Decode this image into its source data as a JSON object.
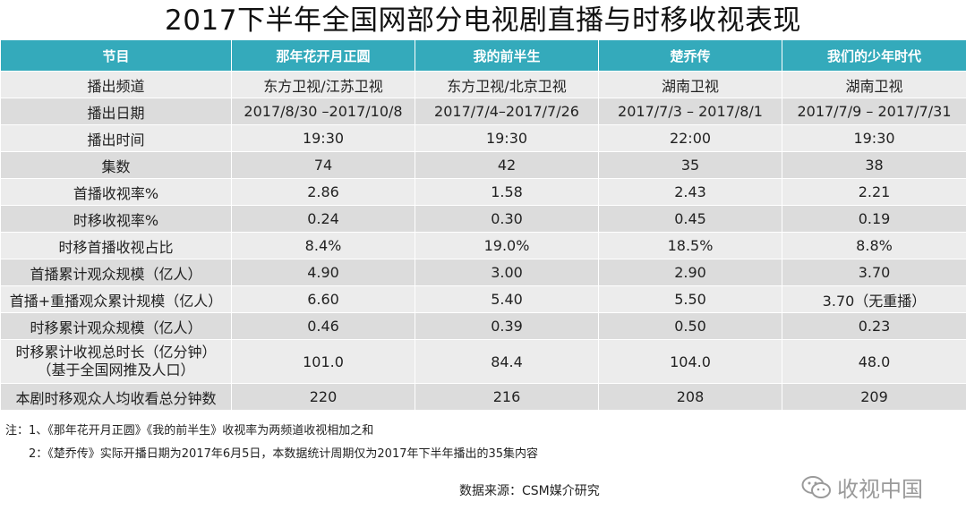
{
  "title": "2017下半年全国网部分电视剧直播与时移收视表现",
  "table": {
    "headers": [
      "节目",
      "那年花开月正圆",
      "我的前半生",
      "楚乔传",
      "我们的少年时代"
    ],
    "rows": [
      {
        "label": "播出频道",
        "values": [
          "东方卫视/江苏卫视",
          "东方卫视/北京卫视",
          "湖南卫视",
          "湖南卫视"
        ]
      },
      {
        "label": "播出日期",
        "values": [
          "2017/8/30 –2017/10/8",
          "2017/7/4–2017/7/26",
          "2017/7/3 – 2017/8/1",
          "2017/7/9 – 2017/7/31"
        ]
      },
      {
        "label": "播出时间",
        "values": [
          "19:30",
          "19:30",
          "22:00",
          "19:30"
        ]
      },
      {
        "label": "集数",
        "values": [
          "74",
          "42",
          "35",
          "38"
        ]
      },
      {
        "label": "首播收视率%",
        "values": [
          "2.86",
          "1.58",
          "2.43",
          "2.21"
        ]
      },
      {
        "label": "时移收视率%",
        "values": [
          "0.24",
          "0.30",
          "0.45",
          "0.19"
        ]
      },
      {
        "label": "时移首播收视占比",
        "values": [
          "8.4%",
          "19.0%",
          "18.5%",
          "8.8%"
        ]
      },
      {
        "label": "首播累计观众规模（亿人）",
        "values": [
          "4.90",
          "3.00",
          "2.90",
          "3.70"
        ]
      },
      {
        "label": "首播+重播观众累计规模（亿人）",
        "values": [
          "6.60",
          "5.40",
          "5.50",
          "3.70（无重播）"
        ]
      },
      {
        "label": "时移累计观众规模（亿人）",
        "values": [
          "0.46",
          "0.39",
          "0.50",
          "0.23"
        ]
      },
      {
        "label_line1": "时移累计收视总时长（亿分钟）",
        "label_line2": "（基于全国网推及人口）",
        "values": [
          "101.0",
          "84.4",
          "104.0",
          "48.0"
        ]
      },
      {
        "label": "本剧时移观众人均收看总分钟数",
        "values": [
          "220",
          "216",
          "208",
          "209"
        ]
      }
    ]
  },
  "notes": {
    "note1": "注：1、《那年花开月正圆》《我的前半生》收视率为两频道收视相加之和",
    "note2": "2：《楚乔传》实际开播日期为2017年6月5日，本数据统计周期仅为2017年下半年播出的35集内容"
  },
  "source": "数据来源：CSM媒介研究",
  "brand": {
    "text": "收视中国",
    "icon": "wechat-icon"
  },
  "colors": {
    "header_bg": "#34aabb",
    "row_light": "#ececec",
    "row_dark": "#dcdcdc",
    "brand_gray": "#9a9a9a"
  }
}
